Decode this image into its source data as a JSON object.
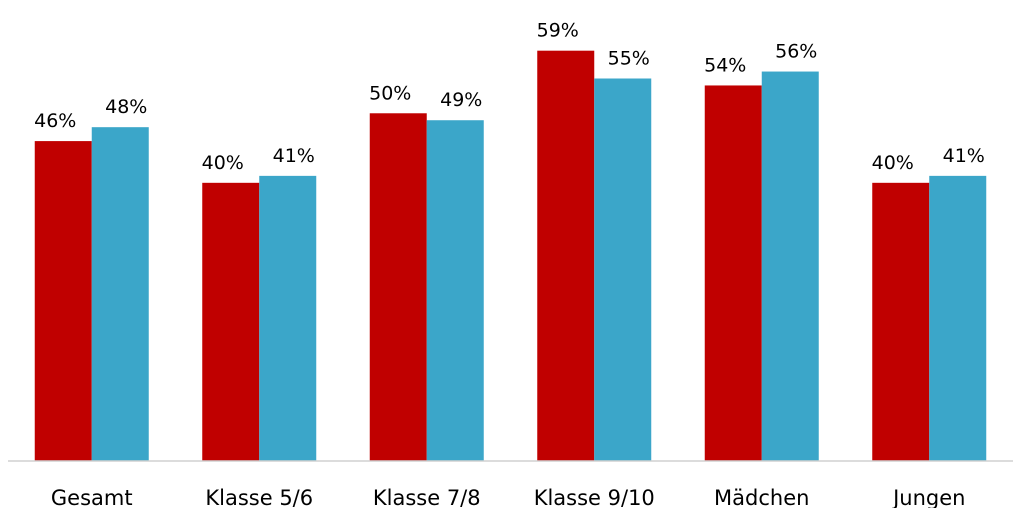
{
  "chart_data": {
    "type": "bar",
    "categories": [
      "Gesamt",
      "Klasse 5/6",
      "Klasse 7/8",
      "Klasse 9/10",
      "Mädchen",
      "Jungen"
    ],
    "series": [
      {
        "color": "#c00000",
        "values": [
          46,
          40,
          50,
          59,
          54,
          40
        ],
        "value_labels": [
          "46%",
          "40%",
          "50%",
          "59%",
          "54%",
          "40%"
        ]
      },
      {
        "color": "#3ba6c9",
        "values": [
          48,
          41,
          49,
          55,
          56,
          41
        ],
        "value_labels": [
          "48%",
          "41%",
          "49%",
          "55%",
          "56%",
          "41%"
        ]
      }
    ],
    "ylim": [
      0,
      66
    ]
  }
}
